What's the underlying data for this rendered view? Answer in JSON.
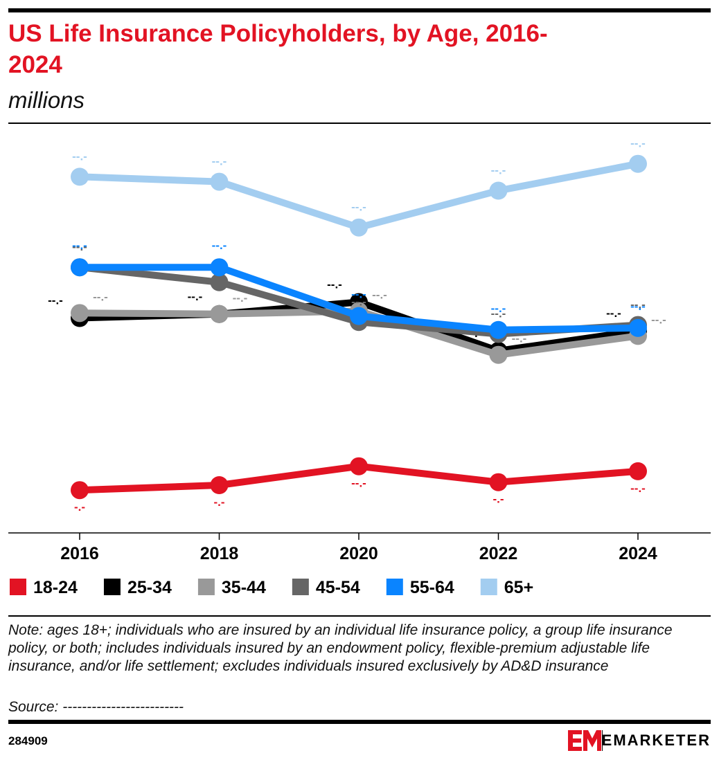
{
  "chart_data": {
    "type": "line",
    "title": "US Life Insurance Policyholders, by Age, 2016-2024",
    "subtitle": "millions",
    "categories": [
      "2016",
      "2018",
      "2020",
      "2022",
      "2024"
    ],
    "ylim": [
      0,
      40
    ],
    "series": [
      {
        "name": "18-24",
        "color": "#e21323",
        "values": [
          4.3,
          4.8,
          6.7,
          5.1,
          6.2
        ],
        "value_labels": [
          "-.-",
          "-.-",
          "--.-",
          "-.-",
          "--.-"
        ]
      },
      {
        "name": "25-34",
        "color": "#000000",
        "values": [
          21.6,
          22.0,
          23.2,
          18.3,
          20.3
        ],
        "value_labels": [
          "--.-",
          "--.-",
          "--.-",
          "--.-",
          "--.-"
        ]
      },
      {
        "name": "35-44",
        "color": "#999999",
        "values": [
          22.1,
          22.0,
          22.3,
          17.9,
          19.8
        ],
        "value_labels": [
          "--.-",
          "--.-",
          "--.-",
          "--.-",
          "--.-"
        ]
      },
      {
        "name": "45-54",
        "color": "#666666",
        "values": [
          26.7,
          25.2,
          21.2,
          20.0,
          20.9
        ],
        "value_labels": [
          "--.-",
          "--.-",
          "--.-",
          "--.-",
          "--.-"
        ]
      },
      {
        "name": "55-64",
        "color": "#0a84ff",
        "values": [
          26.7,
          26.7,
          21.8,
          20.4,
          20.6
        ],
        "value_labels": [
          "--.-",
          "--.-",
          "--.-",
          "--.-",
          "--.-"
        ]
      },
      {
        "name": "65+",
        "color": "#a3cdf0",
        "values": [
          35.8,
          35.3,
          30.7,
          34.4,
          37.1
        ],
        "value_labels": [
          "--.-",
          "--.-",
          "--.-",
          "--.-",
          "--.-"
        ]
      }
    ],
    "note": "Note: ages 18+; individuals who are insured by an individual life insurance policy, a group life insurance policy, or both; includes individuals insured by an endowment policy, flexible-premium adjustable life insurance, and/or life settlement; excludes individuals insured exclusively by AD&D insurance",
    "source": "Source: -------------------------",
    "chart_id": "284909",
    "brand": "EMARKETER"
  }
}
